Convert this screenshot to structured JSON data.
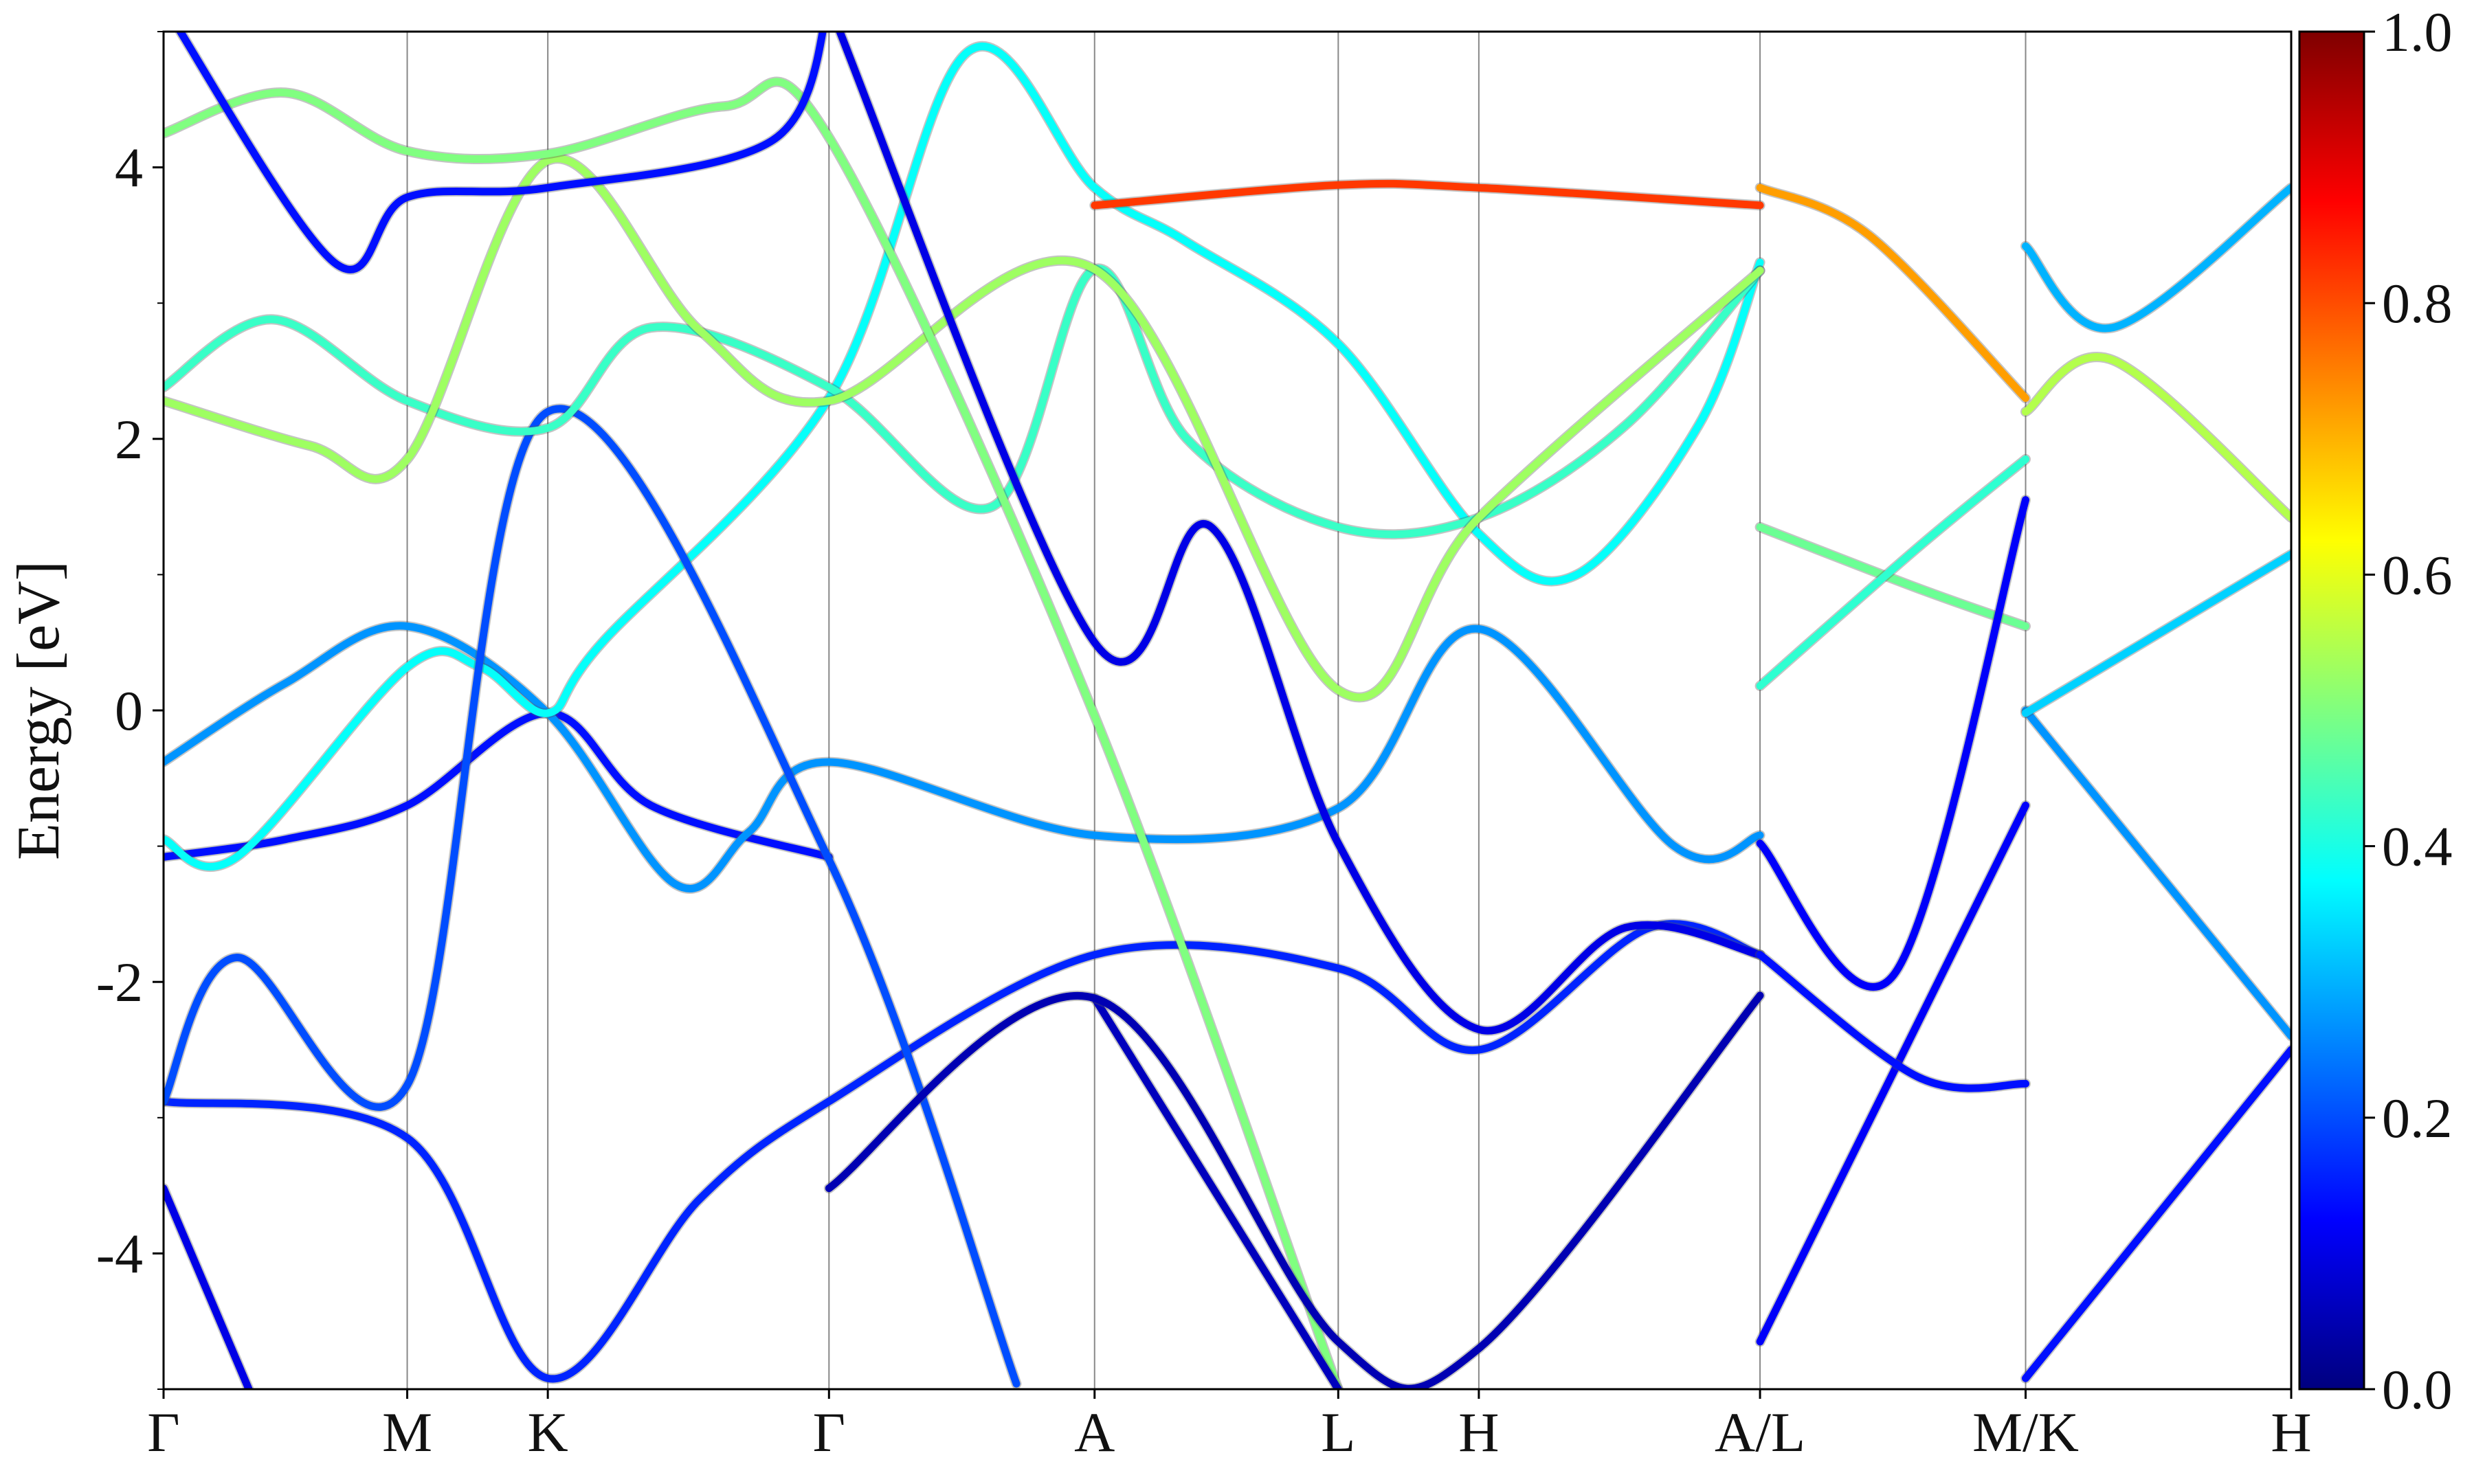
{
  "chart_data": {
    "type": "line",
    "title": "",
    "xlabel": "",
    "ylabel": "Energy [eV]",
    "ylim": [
      -5,
      5
    ],
    "y_ticks": [
      {
        "value": -4,
        "label": "-4"
      },
      {
        "value": -2,
        "label": "-2"
      },
      {
        "value": 0,
        "label": "0"
      },
      {
        "value": 2,
        "label": "2"
      },
      {
        "value": 4,
        "label": "4"
      }
    ],
    "kpoints": [
      {
        "label": "Γ",
        "x": 0
      },
      {
        "label": "M",
        "x": 1
      },
      {
        "label": "K",
        "x": 1.577
      },
      {
        "label": "Γ",
        "x": 2.731
      },
      {
        "label": "A",
        "x": 3.821
      },
      {
        "label": "L",
        "x": 4.821
      },
      {
        "label": "H",
        "x": 5.398
      },
      {
        "label": "A/L",
        "x": 6.552
      },
      {
        "label": "M/K",
        "x": 7.642
      },
      {
        "label": "H",
        "x": 8.732
      }
    ],
    "xlim": [
      0,
      8.732
    ],
    "grid": "vertical lines at k-points",
    "colorbar": {
      "colormap": "jet",
      "range": [
        0.0,
        1.0
      ],
      "ticks": [
        {
          "value": 0.0,
          "label": "0.0"
        },
        {
          "value": 0.2,
          "label": "0.2"
        },
        {
          "value": 0.4,
          "label": "0.4"
        },
        {
          "value": 0.6,
          "label": "0.6"
        },
        {
          "value": 0.8,
          "label": "0.8"
        },
        {
          "value": 1.0,
          "label": "1.0"
        }
      ]
    },
    "series": [
      {
        "points": [
          [
            0,
            -1.08
          ],
          [
            0.5,
            -0.95
          ],
          [
            1,
            -0.7
          ],
          [
            1.577,
            -0.02
          ],
          [
            2.0,
            -0.7
          ],
          [
            2.731,
            -1.08
          ]
        ],
        "weight": 0.14
      },
      {
        "points": [
          [
            0,
            -0.38
          ],
          [
            0.5,
            0.2
          ],
          [
            1,
            0.62
          ],
          [
            1.577,
            -0.02
          ],
          [
            2.1,
            -1.28
          ],
          [
            2.4,
            -0.9
          ],
          [
            2.731,
            -0.38
          ],
          [
            3.821,
            -0.92
          ],
          [
            4.821,
            -0.72
          ],
          [
            5.398,
            0.6
          ],
          [
            6.2,
            -1.0
          ],
          [
            6.552,
            -0.92
          ]
        ],
        "weight": 0.27
      },
      {
        "points": [
          [
            0,
            -0.95
          ],
          [
            0.3,
            -1.08
          ],
          [
            1,
            0.32
          ],
          [
            1.3,
            0.32
          ],
          [
            1.577,
            -0.02
          ],
          [
            1.8,
            0.5
          ],
          [
            2.731,
            2.3
          ],
          [
            3.3,
            4.85
          ],
          [
            3.821,
            3.85
          ],
          [
            4.2,
            3.45
          ],
          [
            4.821,
            2.7
          ],
          [
            5.398,
            1.3
          ],
          [
            5.8,
            1.0
          ],
          [
            6.3,
            2.1
          ],
          [
            6.552,
            3.3
          ]
        ],
        "weight": 0.38
      },
      {
        "points": [
          [
            0,
            -2.88
          ],
          [
            1,
            -3.15
          ],
          [
            1.577,
            -4.92
          ],
          [
            2.2,
            -3.6
          ],
          [
            2.731,
            -2.88
          ],
          [
            3.821,
            -1.8
          ],
          [
            4.821,
            -1.9
          ],
          [
            5.398,
            -2.5
          ],
          [
            6.1,
            -1.6
          ],
          [
            6.552,
            -1.8
          ]
        ],
        "weight": 0.16
      },
      {
        "points": [
          [
            0,
            -2.88
          ],
          [
            0.3,
            -1.82
          ],
          [
            1,
            -2.76
          ],
          [
            1.577,
            2.2
          ],
          [
            2.731,
            -1.1
          ],
          [
            3.5,
            -4.96
          ]
        ],
        "weight": 0.2
      },
      {
        "points": [
          [
            0,
            -3.52
          ],
          [
            0.35,
            -5.0
          ]
        ],
        "weight": 0.1
      },
      {
        "points": [
          [
            0,
            2.38
          ],
          [
            0.45,
            2.88
          ],
          [
            1,
            2.28
          ],
          [
            1.577,
            2.08
          ],
          [
            2.0,
            2.82
          ],
          [
            2.731,
            2.38
          ],
          [
            3.4,
            1.5
          ],
          [
            3.821,
            3.25
          ],
          [
            4.2,
            2.0
          ],
          [
            4.821,
            1.35
          ],
          [
            5.398,
            1.42
          ],
          [
            6.0,
            2.1
          ],
          [
            6.552,
            3.24
          ]
        ],
        "weight": 0.43
      },
      {
        "points": [
          [
            0,
            2.28
          ],
          [
            0.6,
            1.95
          ],
          [
            1,
            1.85
          ],
          [
            1.577,
            4.05
          ],
          [
            2.2,
            2.8
          ],
          [
            2.731,
            2.28
          ],
          [
            3.821,
            3.25
          ],
          [
            4.821,
            0.15
          ],
          [
            5.398,
            1.42
          ],
          [
            6.552,
            3.24
          ]
        ],
        "weight": 0.53
      },
      {
        "points": [
          [
            0,
            4.25
          ],
          [
            0.5,
            4.55
          ],
          [
            1,
            4.12
          ],
          [
            1.577,
            4.1
          ],
          [
            2.3,
            4.45
          ],
          [
            2.731,
            4.22
          ],
          [
            3.821,
            -0.04
          ],
          [
            4.821,
            -5.0
          ]
        ],
        "weight": 0.5
      },
      {
        "points": [
          [
            0,
            5.2
          ],
          [
            0.7,
            3.3
          ],
          [
            1,
            3.78
          ],
          [
            1.577,
            3.85
          ],
          [
            2.5,
            4.2
          ],
          [
            2.731,
            5.2
          ]
        ],
        "weight": 0.14
      },
      {
        "points": [
          [
            3.821,
            3.72
          ],
          [
            4.821,
            3.87
          ],
          [
            5.398,
            3.85
          ],
          [
            6.552,
            3.72
          ]
        ],
        "weight": 0.82
      },
      {
        "points": [
          [
            2.731,
            5.2
          ],
          [
            3.821,
            0.5
          ],
          [
            4.3,
            1.35
          ],
          [
            4.821,
            -0.98
          ],
          [
            5.398,
            -2.35
          ],
          [
            6.0,
            -1.6
          ],
          [
            6.552,
            -1.8
          ]
        ],
        "weight": 0.1
      },
      {
        "points": [
          [
            3.821,
            -2.12
          ],
          [
            4.821,
            -5.0
          ]
        ],
        "weight": 0.06
      },
      {
        "points": [
          [
            2.731,
            -3.52
          ],
          [
            3.821,
            -2.12
          ],
          [
            4.821,
            -4.65
          ],
          [
            5.398,
            -4.7
          ],
          [
            6.552,
            -2.1
          ]
        ],
        "weight": 0.05
      },
      {
        "points": [
          [
            6.552,
            3.85
          ],
          [
            7.0,
            3.5
          ],
          [
            7.642,
            2.3
          ]
        ],
        "weight": 0.72
      },
      {
        "points": [
          [
            6.552,
            1.35
          ],
          [
            7.2,
            0.9
          ],
          [
            7.642,
            0.62
          ]
        ],
        "weight": 0.48
      },
      {
        "points": [
          [
            6.552,
            0.18
          ],
          [
            7.2,
            1.2
          ],
          [
            7.642,
            1.85
          ]
        ],
        "weight": 0.42
      },
      {
        "points": [
          [
            6.552,
            -0.98
          ],
          [
            7.1,
            -1.95
          ],
          [
            7.642,
            1.55
          ]
        ],
        "weight": 0.12
      },
      {
        "points": [
          [
            6.552,
            -4.65
          ],
          [
            7.642,
            -0.7
          ]
        ],
        "weight": 0.12
      },
      {
        "points": [
          [
            6.552,
            -1.8
          ],
          [
            7.2,
            -2.7
          ],
          [
            7.642,
            -2.75
          ]
        ],
        "weight": 0.14
      },
      {
        "points": [
          [
            7.642,
            0.0
          ],
          [
            8.732,
            -2.4
          ]
        ],
        "weight": 0.27
      },
      {
        "points": [
          [
            7.642,
            -0.02
          ],
          [
            8.732,
            1.15
          ]
        ],
        "weight": 0.33
      },
      {
        "points": [
          [
            7.642,
            -4.92
          ],
          [
            8.732,
            -2.5
          ]
        ],
        "weight": 0.14
      },
      {
        "points": [
          [
            7.642,
            3.42
          ],
          [
            8.0,
            2.82
          ],
          [
            8.732,
            3.85
          ]
        ],
        "weight": 0.3
      },
      {
        "points": [
          [
            7.642,
            2.2
          ],
          [
            8.0,
            2.58
          ],
          [
            8.732,
            1.42
          ]
        ],
        "weight": 0.55
      }
    ]
  }
}
